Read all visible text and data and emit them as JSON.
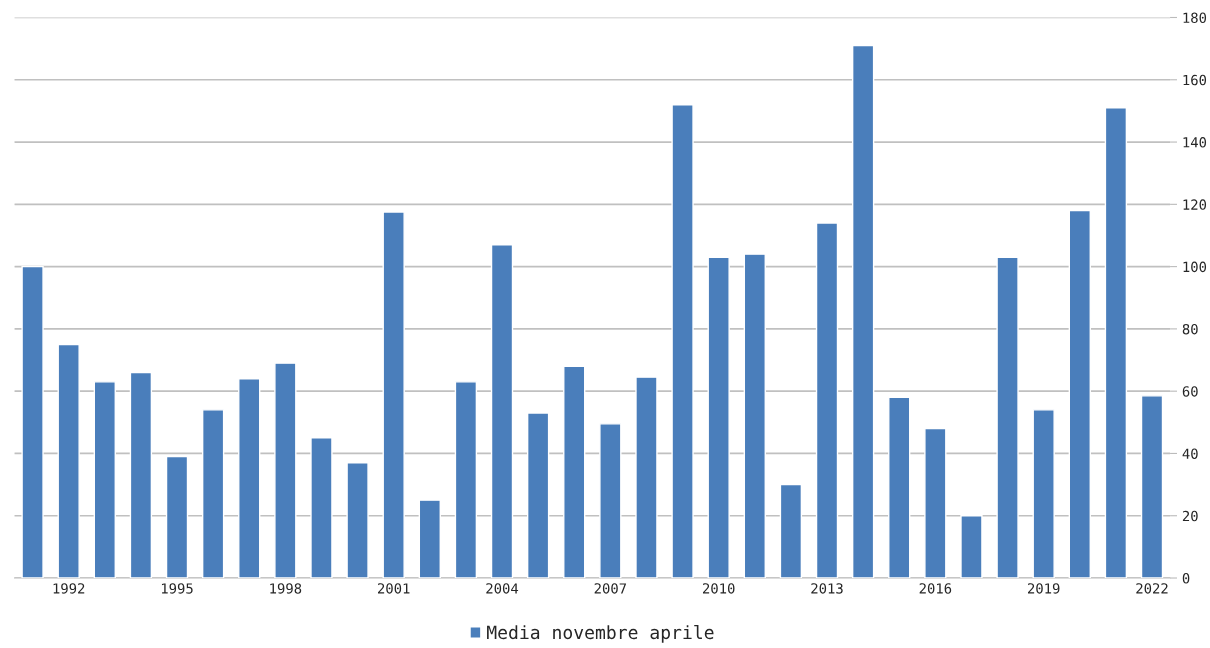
{
  "chart_data": {
    "type": "bar",
    "categories": [
      null,
      "1992",
      null,
      null,
      "1995",
      null,
      null,
      "1998",
      null,
      null,
      "2001",
      null,
      null,
      "2004",
      null,
      null,
      "2007",
      null,
      null,
      "2010",
      null,
      null,
      "2013",
      null,
      null,
      "2016",
      null,
      null,
      "2019",
      null,
      null,
      "2022"
    ],
    "series": [
      {
        "name": "Media novembre aprile",
        "color": "#4a7ebb",
        "values": [
          100,
          75,
          63,
          66,
          39,
          54,
          64,
          69,
          45,
          37,
          117.5,
          25,
          63,
          107,
          53,
          68,
          49.5,
          64.5,
          152,
          103,
          104,
          30,
          114,
          171,
          58,
          48,
          20,
          103,
          54,
          118,
          151,
          58.5
        ]
      }
    ],
    "ylim": [
      0,
      180
    ],
    "yticks": [
      0,
      20,
      40,
      60,
      80,
      100,
      120,
      140,
      160,
      180
    ],
    "grid": "y",
    "legend": "bottom"
  }
}
